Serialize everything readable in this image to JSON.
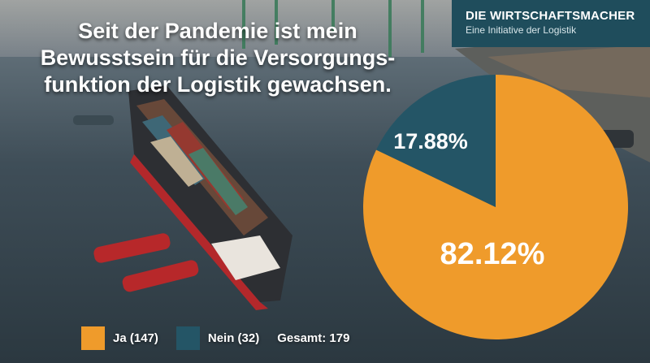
{
  "headline": {
    "line1": "Seit der Pandemie ist mein",
    "line2": "Bewusstsein für die Versorgungs-",
    "line3": "funktion der Logistik gewachsen."
  },
  "brand": {
    "name": "DIE WIRTSCHAFTSMACHER",
    "tagline": "Eine Initiative der Logistik"
  },
  "colors": {
    "ja": "#ef9b2b",
    "nein": "#245566",
    "brand_bg": "#1f4d5c"
  },
  "chart_data": {
    "type": "pie",
    "slices": [
      {
        "label": "Ja (147)",
        "value": 82.12,
        "count": 147,
        "display": "82.12%",
        "color": "#ef9b2b"
      },
      {
        "label": "Nein (32)",
        "value": 17.88,
        "count": 32,
        "display": "17.88%",
        "color": "#245566"
      }
    ],
    "legend_position": "bottom-left",
    "total_label": "Gesamt: 179"
  }
}
